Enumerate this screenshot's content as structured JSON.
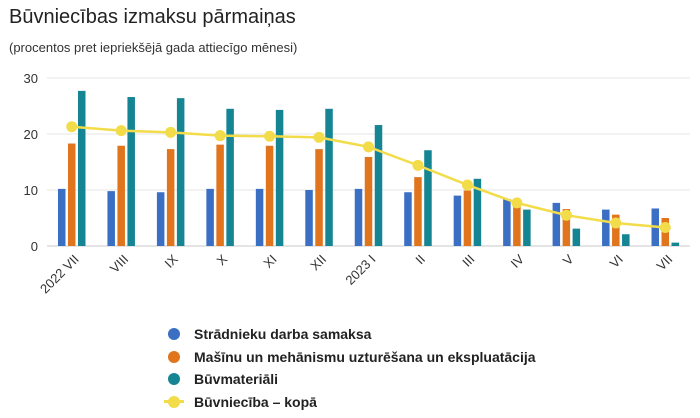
{
  "title": "Būvniecības izmaksu pārmaiņas",
  "subtitle": "(procentos pret iepriekšējā gada attiecīgo mēnesi)",
  "chart_data": {
    "type": "bar",
    "categories": [
      "2022 VII",
      "VIII",
      "IX",
      "X",
      "XI",
      "XII",
      "2023 I",
      "II",
      "III",
      "IV",
      "V",
      "VI",
      "VII"
    ],
    "ylim": [
      0,
      30
    ],
    "yticks": [
      0,
      10,
      20,
      30
    ],
    "grid": true,
    "legend_position": "bottom",
    "series": [
      {
        "name": "Strādnieku darba samaksa",
        "type": "bar",
        "color": "#3a6fc4",
        "values": [
          10.2,
          9.8,
          9.6,
          10.2,
          10.2,
          10.0,
          10.2,
          9.6,
          9.0,
          8.4,
          7.7,
          6.5,
          6.7
        ]
      },
      {
        "name": "Mašīnu un mehānismu uzturēšana un ekspluatācija",
        "type": "bar",
        "color": "#e0751e",
        "values": [
          18.3,
          17.9,
          17.3,
          18.1,
          17.9,
          17.3,
          15.9,
          12.3,
          9.9,
          7.9,
          6.6,
          5.6,
          5.0
        ]
      },
      {
        "name": "Būvmateriāli",
        "type": "bar",
        "color": "#158493",
        "values": [
          27.7,
          26.6,
          26.4,
          24.5,
          24.3,
          24.5,
          21.6,
          17.1,
          12.0,
          6.5,
          3.1,
          2.1,
          0.6
        ]
      },
      {
        "name": "Būvniecība – kopā",
        "type": "line",
        "color": "#f2dc4a",
        "values": [
          21.3,
          20.6,
          20.3,
          19.7,
          19.6,
          19.4,
          17.7,
          14.4,
          10.9,
          7.7,
          5.5,
          4.1,
          3.3
        ]
      }
    ]
  }
}
